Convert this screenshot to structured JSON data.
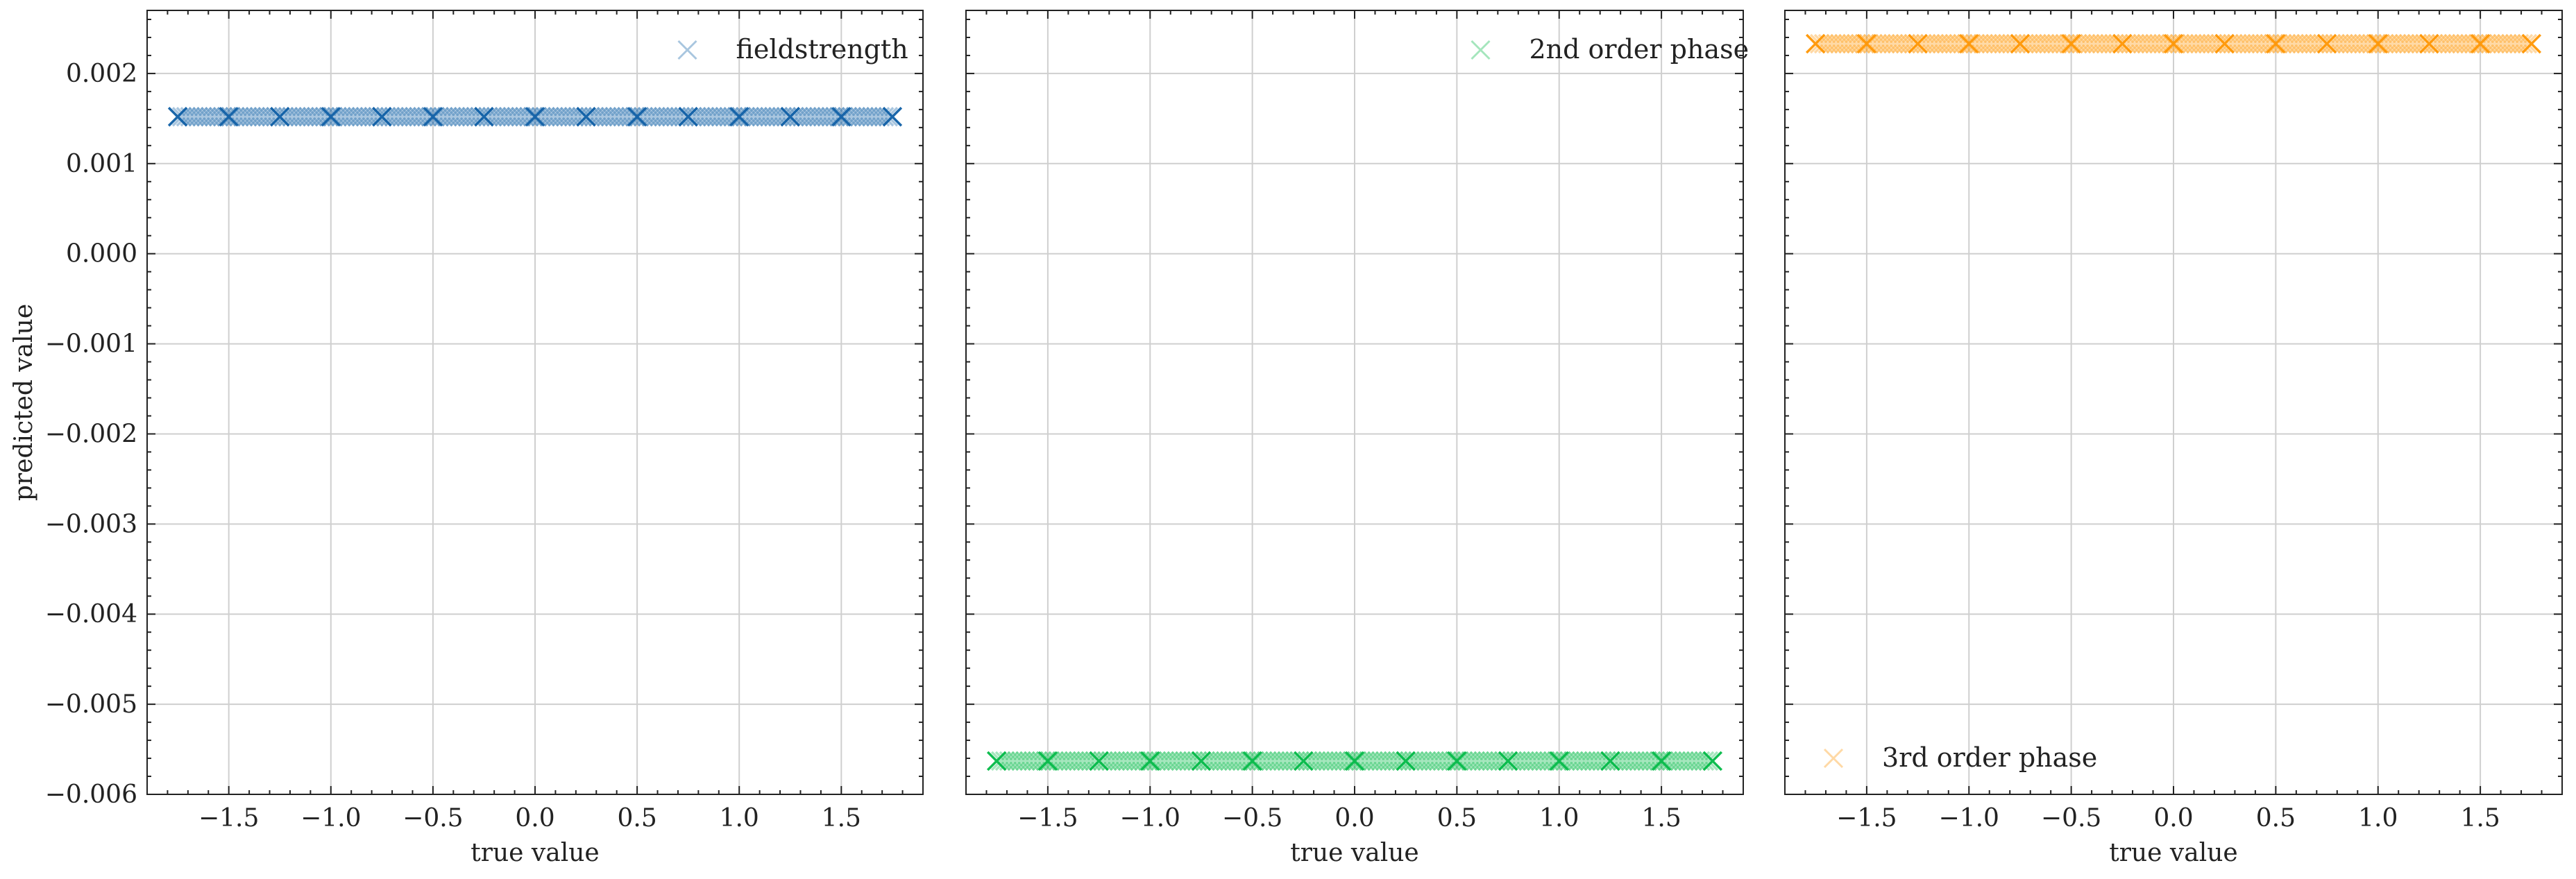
{
  "chart_data": [
    {
      "type": "scatter",
      "xlabel": "true value",
      "ylabel": "predicted value",
      "xlim": [
        -1.9,
        1.9
      ],
      "ylim": [
        -0.006,
        0.0027
      ],
      "xticks": [
        -1.5,
        -1.0,
        -0.5,
        0.0,
        0.5,
        1.0,
        1.5
      ],
      "xtick_labels": [
        "−1.5",
        "−1.0",
        "−0.5",
        "0.0",
        "0.5",
        "1.0",
        "1.5"
      ],
      "yticks": [
        0.002,
        0.001,
        0.0,
        -0.001,
        -0.002,
        -0.003,
        -0.004,
        -0.005,
        -0.006
      ],
      "ytick_labels": [
        "0.002",
        "0.001",
        "0.000",
        "−0.001",
        "−0.002",
        "−0.003",
        "−0.004",
        "−0.005",
        "−0.006"
      ],
      "grid": true,
      "legend": "top-right",
      "series": [
        {
          "name": "fieldstrength",
          "color": "#0C5DA5",
          "marker": "x",
          "x": [
            -1.75,
            -1.5,
            -1.25,
            -1.0,
            -0.75,
            -0.5,
            -0.25,
            0.0,
            0.25,
            0.5,
            0.75,
            1.0,
            1.25,
            1.5,
            1.75
          ],
          "y": [
            0.00152,
            0.00152,
            0.00152,
            0.00152,
            0.00152,
            0.00152,
            0.00152,
            0.00152,
            0.00152,
            0.00152,
            0.00152,
            0.00152,
            0.00152,
            0.00152,
            0.00152
          ]
        }
      ]
    },
    {
      "type": "scatter",
      "xlabel": "true value",
      "ylabel": "",
      "xlim": [
        -1.9,
        1.9
      ],
      "ylim": [
        -0.006,
        0.0027
      ],
      "xticks": [
        -1.5,
        -1.0,
        -0.5,
        0.0,
        0.5,
        1.0,
        1.5
      ],
      "xtick_labels": [
        "−1.5",
        "−1.0",
        "−0.5",
        "0.0",
        "0.5",
        "1.0",
        "1.5"
      ],
      "yticks": [
        0.002,
        0.001,
        0.0,
        -0.001,
        -0.002,
        -0.003,
        -0.004,
        -0.005,
        -0.006
      ],
      "ytick_labels": [],
      "grid": true,
      "legend": "top-right",
      "series": [
        {
          "name": "2nd order phase",
          "color": "#00B945",
          "marker": "x",
          "x": [
            -1.75,
            -1.5,
            -1.25,
            -1.0,
            -0.75,
            -0.5,
            -0.25,
            0.0,
            0.25,
            0.5,
            0.75,
            1.0,
            1.25,
            1.5,
            1.75
          ],
          "y": [
            -0.00563,
            -0.00563,
            -0.00563,
            -0.00563,
            -0.00563,
            -0.00563,
            -0.00563,
            -0.00563,
            -0.00563,
            -0.00563,
            -0.00563,
            -0.00563,
            -0.00563,
            -0.00563,
            -0.00563
          ]
        }
      ]
    },
    {
      "type": "scatter",
      "xlabel": "true value",
      "ylabel": "",
      "xlim": [
        -1.9,
        1.9
      ],
      "ylim": [
        -0.006,
        0.0027
      ],
      "xticks": [
        -1.5,
        -1.0,
        -0.5,
        0.0,
        0.5,
        1.0,
        1.5
      ],
      "xtick_labels": [
        "−1.5",
        "−1.0",
        "−0.5",
        "0.0",
        "0.5",
        "1.0",
        "1.5"
      ],
      "yticks": [
        0.002,
        0.001,
        0.0,
        -0.001,
        -0.002,
        -0.003,
        -0.004,
        -0.005,
        -0.006
      ],
      "ytick_labels": [],
      "grid": true,
      "legend": "bottom-left",
      "series": [
        {
          "name": "3rd order phase",
          "color": "#FF9500",
          "marker": "x",
          "x": [
            -1.75,
            -1.5,
            -1.25,
            -1.0,
            -0.75,
            -0.5,
            -0.25,
            0.0,
            0.25,
            0.5,
            0.75,
            1.0,
            1.25,
            1.5,
            1.75
          ],
          "y": [
            0.00233,
            0.00233,
            0.00233,
            0.00233,
            0.00233,
            0.00233,
            0.00233,
            0.00233,
            0.00233,
            0.00233,
            0.00233,
            0.00233,
            0.00233,
            0.00233,
            0.00233
          ]
        }
      ]
    }
  ]
}
